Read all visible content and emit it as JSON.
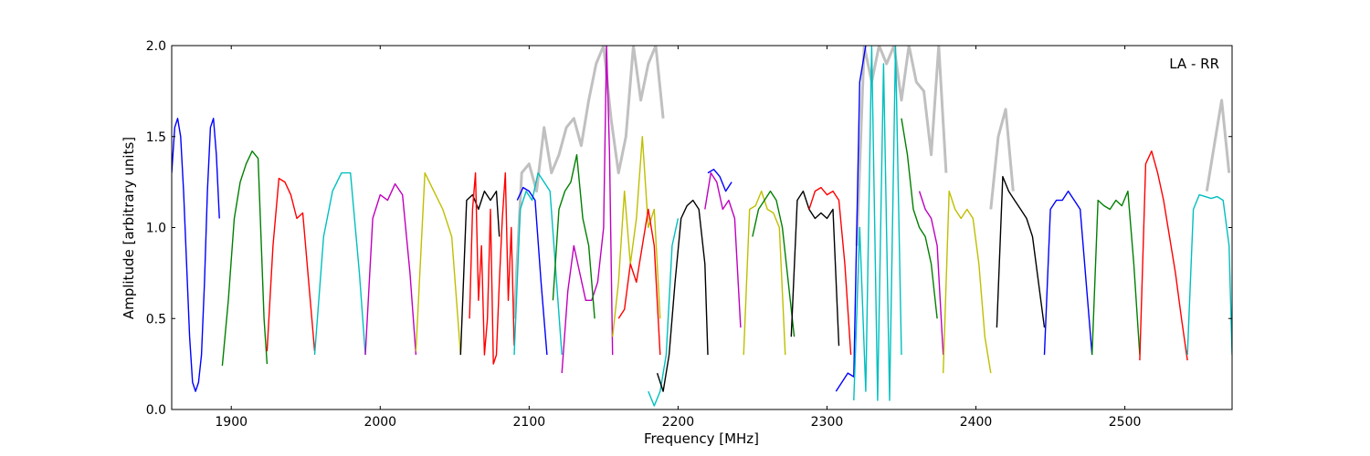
{
  "chart_data": {
    "type": "line",
    "annotation": "LA - RR",
    "xlabel": "Frequency [MHz]",
    "ylabel": "Amplitude [arbitrary units]",
    "xlim": [
      1860,
      2572
    ],
    "ylim": [
      0.0,
      2.0
    ],
    "xticks": [
      1900,
      2000,
      2100,
      2200,
      2300,
      2400,
      2500
    ],
    "xtick_labels": [
      "1900",
      "2000",
      "2100",
      "2200",
      "2300",
      "2400",
      "2500"
    ],
    "yticks": [
      0.0,
      0.5,
      1.0,
      1.5,
      2.0
    ],
    "ytick_labels": [
      "0.0",
      "0.5",
      "1.0",
      "1.5",
      "2.0"
    ],
    "grid": false,
    "background_color": "#c0c0c0",
    "colors": {
      "b": "#0000ff",
      "g": "#008000",
      "r": "#ff0000",
      "c": "#00bfbf",
      "m": "#bf00bf",
      "y": "#bfbf00",
      "k": "#000000"
    },
    "background_series": [
      {
        "x": [
          2090,
          2095,
          2100,
          2105,
          2110,
          2115,
          2120,
          2125,
          2130,
          2135,
          2140,
          2145,
          2150,
          2155,
          2160,
          2165,
          2170,
          2175,
          2180,
          2185,
          2190
        ],
        "y": [
          0.5,
          1.3,
          1.35,
          1.2,
          1.55,
          1.3,
          1.4,
          1.55,
          1.6,
          1.45,
          1.7,
          1.9,
          2.0,
          1.6,
          1.3,
          1.5,
          2.0,
          1.7,
          1.9,
          2.0,
          1.6
        ]
      },
      {
        "x": [
          2320,
          2325,
          2330,
          2335,
          2340,
          2345,
          2350,
          2355,
          2360,
          2365,
          2370,
          2375,
          2380
        ],
        "y": [
          0.9,
          2.0,
          1.8,
          2.0,
          1.9,
          2.0,
          1.7,
          2.0,
          1.8,
          1.75,
          1.4,
          2.0,
          1.3
        ]
      },
      {
        "x": [
          2410,
          2415,
          2420,
          2425
        ],
        "y": [
          1.1,
          1.5,
          1.65,
          1.2
        ]
      },
      {
        "x": [
          2555,
          2560,
          2565,
          2570
        ],
        "y": [
          1.2,
          1.45,
          1.7,
          1.3
        ]
      }
    ],
    "series": [
      {
        "color": "b",
        "x": [
          1860,
          1862,
          1864,
          1866,
          1868,
          1870,
          1872,
          1874,
          1876,
          1878,
          1880,
          1882,
          1884,
          1886,
          1888,
          1890,
          1892
        ],
        "y": [
          1.3,
          1.55,
          1.6,
          1.5,
          1.2,
          0.8,
          0.4,
          0.15,
          0.1,
          0.15,
          0.3,
          0.7,
          1.2,
          1.55,
          1.6,
          1.4,
          1.05
        ]
      },
      {
        "color": "g",
        "x": [
          1894,
          1898,
          1902,
          1906,
          1910,
          1914,
          1918,
          1922,
          1924
        ],
        "y": [
          0.24,
          0.6,
          1.05,
          1.25,
          1.35,
          1.42,
          1.38,
          0.5,
          0.25
        ]
      },
      {
        "color": "r",
        "x": [
          1924,
          1928,
          1932,
          1936,
          1940,
          1944,
          1948,
          1952,
          1956
        ],
        "y": [
          0.32,
          0.9,
          1.27,
          1.25,
          1.18,
          1.05,
          1.08,
          0.7,
          0.32
        ]
      },
      {
        "color": "c",
        "x": [
          1956,
          1962,
          1968,
          1974,
          1980,
          1986,
          1990
        ],
        "y": [
          0.3,
          0.95,
          1.2,
          1.3,
          1.3,
          0.75,
          0.3
        ]
      },
      {
        "color": "m",
        "x": [
          1990,
          1995,
          2000,
          2005,
          2010,
          2015,
          2020,
          2024
        ],
        "y": [
          0.3,
          1.05,
          1.18,
          1.15,
          1.24,
          1.18,
          0.75,
          0.3
        ]
      },
      {
        "color": "y",
        "x": [
          2024,
          2030,
          2036,
          2042,
          2048,
          2054
        ],
        "y": [
          0.32,
          1.3,
          1.2,
          1.1,
          0.95,
          0.3
        ]
      },
      {
        "color": "k",
        "x": [
          2054,
          2058,
          2062,
          2066,
          2070,
          2074,
          2078,
          2080
        ],
        "y": [
          0.3,
          1.15,
          1.18,
          1.1,
          1.2,
          1.15,
          1.2,
          0.95
        ]
      },
      {
        "color": "r",
        "x": [
          2060,
          2062,
          2064,
          2066,
          2068,
          2070,
          2072,
          2074,
          2076,
          2078,
          2080,
          2082,
          2084,
          2086,
          2088,
          2090
        ],
        "y": [
          0.5,
          1.1,
          1.3,
          0.6,
          0.9,
          0.3,
          0.5,
          1.1,
          0.25,
          0.3,
          0.7,
          1.05,
          1.3,
          0.6,
          1.0,
          0.35
        ]
      },
      {
        "color": "c",
        "x": [
          2090,
          2094,
          2098,
          2102,
          2106,
          2110,
          2114,
          2118,
          2122
        ],
        "y": [
          0.3,
          1.1,
          1.2,
          1.15,
          1.3,
          1.25,
          1.2,
          0.75,
          0.3
        ]
      },
      {
        "color": "b",
        "x": [
          2092,
          2096,
          2100,
          2104,
          2108,
          2112
        ],
        "y": [
          1.15,
          1.22,
          1.2,
          1.15,
          0.7,
          0.3
        ]
      },
      {
        "color": "m",
        "x": [
          2122,
          2126,
          2130,
          2134,
          2138,
          2142,
          2146,
          2150,
          2152,
          2154,
          2156
        ],
        "y": [
          0.2,
          0.65,
          0.9,
          0.75,
          0.6,
          0.6,
          0.7,
          1.0,
          2.0,
          1.4,
          0.3
        ]
      },
      {
        "color": "g",
        "x": [
          2116,
          2120,
          2124,
          2128,
          2132,
          2136,
          2140,
          2144
        ],
        "y": [
          0.6,
          1.1,
          1.2,
          1.25,
          1.4,
          1.05,
          0.9,
          0.5
        ]
      },
      {
        "color": "y",
        "x": [
          2156,
          2160,
          2164,
          2168,
          2172,
          2176,
          2180,
          2184,
          2188
        ],
        "y": [
          0.4,
          0.7,
          1.2,
          0.8,
          1.05,
          1.5,
          1.0,
          1.1,
          0.5
        ]
      },
      {
        "color": "r",
        "x": [
          2160,
          2164,
          2168,
          2172,
          2176,
          2180,
          2184,
          2188
        ],
        "y": [
          0.5,
          0.55,
          0.8,
          0.7,
          0.9,
          1.1,
          0.9,
          0.3
        ]
      },
      {
        "color": "c",
        "x": [
          2180,
          2184,
          2188,
          2192,
          2196,
          2200
        ],
        "y": [
          0.1,
          0.02,
          0.1,
          0.3,
          0.9,
          1.05
        ]
      },
      {
        "color": "k",
        "x": [
          2186,
          2190,
          2194,
          2198,
          2202,
          2206,
          2210,
          2214,
          2218,
          2220
        ],
        "y": [
          0.2,
          0.1,
          0.3,
          0.7,
          1.05,
          1.12,
          1.15,
          1.1,
          0.8,
          0.3
        ]
      },
      {
        "color": "m",
        "x": [
          2218,
          2222,
          2226,
          2230,
          2234,
          2238,
          2242
        ],
        "y": [
          1.1,
          1.3,
          1.25,
          1.1,
          1.15,
          1.05,
          0.45
        ]
      },
      {
        "color": "b",
        "x": [
          2220,
          2224,
          2228,
          2232,
          2236
        ],
        "y": [
          1.3,
          1.32,
          1.28,
          1.2,
          1.25
        ]
      },
      {
        "color": "y",
        "x": [
          2244,
          2248,
          2252,
          2256,
          2260,
          2264,
          2268,
          2272
        ],
        "y": [
          0.3,
          1.1,
          1.12,
          1.2,
          1.1,
          1.08,
          1.0,
          0.3
        ]
      },
      {
        "color": "g",
        "x": [
          2250,
          2254,
          2258,
          2262,
          2266,
          2270,
          2274,
          2278
        ],
        "y": [
          0.95,
          1.1,
          1.15,
          1.2,
          1.15,
          1.0,
          0.7,
          0.4
        ]
      },
      {
        "color": "k",
        "x": [
          2276,
          2280,
          2284,
          2288,
          2292,
          2296,
          2300,
          2304,
          2308
        ],
        "y": [
          0.4,
          1.15,
          1.2,
          1.1,
          1.05,
          1.08,
          1.05,
          1.1,
          0.35
        ]
      },
      {
        "color": "r",
        "x": [
          2288,
          2292,
          2296,
          2300,
          2304,
          2308,
          2312,
          2316
        ],
        "y": [
          1.1,
          1.2,
          1.22,
          1.18,
          1.2,
          1.15,
          0.8,
          0.3
        ]
      },
      {
        "color": "b",
        "x": [
          2306,
          2310,
          2314,
          2318,
          2322,
          2326
        ],
        "y": [
          0.1,
          0.15,
          0.2,
          0.18,
          1.8,
          2.0
        ]
      },
      {
        "color": "c",
        "x": [
          2318,
          2322,
          2326,
          2330,
          2334,
          2338,
          2342,
          2346,
          2350
        ],
        "y": [
          0.05,
          1.0,
          0.1,
          2.0,
          0.05,
          1.9,
          0.05,
          2.0,
          0.3
        ]
      },
      {
        "color": "g",
        "x": [
          2350,
          2354,
          2358,
          2362,
          2366,
          2370,
          2374
        ],
        "y": [
          1.6,
          1.4,
          1.1,
          1.0,
          0.95,
          0.8,
          0.5
        ]
      },
      {
        "color": "m",
        "x": [
          2362,
          2366,
          2370,
          2374,
          2378
        ],
        "y": [
          1.2,
          1.1,
          1.05,
          0.9,
          0.3
        ]
      },
      {
        "color": "y",
        "x": [
          2378,
          2382,
          2386,
          2390,
          2394,
          2398,
          2402,
          2406,
          2410
        ],
        "y": [
          0.2,
          1.2,
          1.1,
          1.05,
          1.1,
          1.05,
          0.8,
          0.4,
          0.2
        ]
      },
      {
        "color": "k",
        "x": [
          2414,
          2418,
          2422,
          2426,
          2430,
          2434,
          2438,
          2442,
          2446
        ],
        "y": [
          0.45,
          1.28,
          1.2,
          1.15,
          1.1,
          1.05,
          0.95,
          0.7,
          0.45
        ]
      },
      {
        "color": "b",
        "x": [
          2446,
          2450,
          2454,
          2458,
          2462,
          2466,
          2470,
          2474,
          2478
        ],
        "y": [
          0.3,
          1.1,
          1.15,
          1.15,
          1.2,
          1.15,
          1.1,
          0.7,
          0.3
        ]
      },
      {
        "color": "g",
        "x": [
          2478,
          2482,
          2486,
          2490,
          2494,
          2498,
          2502,
          2506,
          2510
        ],
        "y": [
          0.3,
          1.15,
          1.12,
          1.1,
          1.15,
          1.12,
          1.2,
          0.8,
          0.3
        ]
      },
      {
        "color": "r",
        "x": [
          2510,
          2514,
          2518,
          2522,
          2526,
          2530,
          2534,
          2538,
          2542
        ],
        "y": [
          0.27,
          1.35,
          1.42,
          1.3,
          1.15,
          0.95,
          0.75,
          0.5,
          0.27
        ]
      },
      {
        "color": "c",
        "x": [
          2542,
          2546,
          2550,
          2554,
          2558,
          2562,
          2566,
          2570,
          2572
        ],
        "y": [
          0.3,
          1.1,
          1.18,
          1.17,
          1.16,
          1.17,
          1.15,
          0.9,
          0.3
        ]
      }
    ]
  }
}
